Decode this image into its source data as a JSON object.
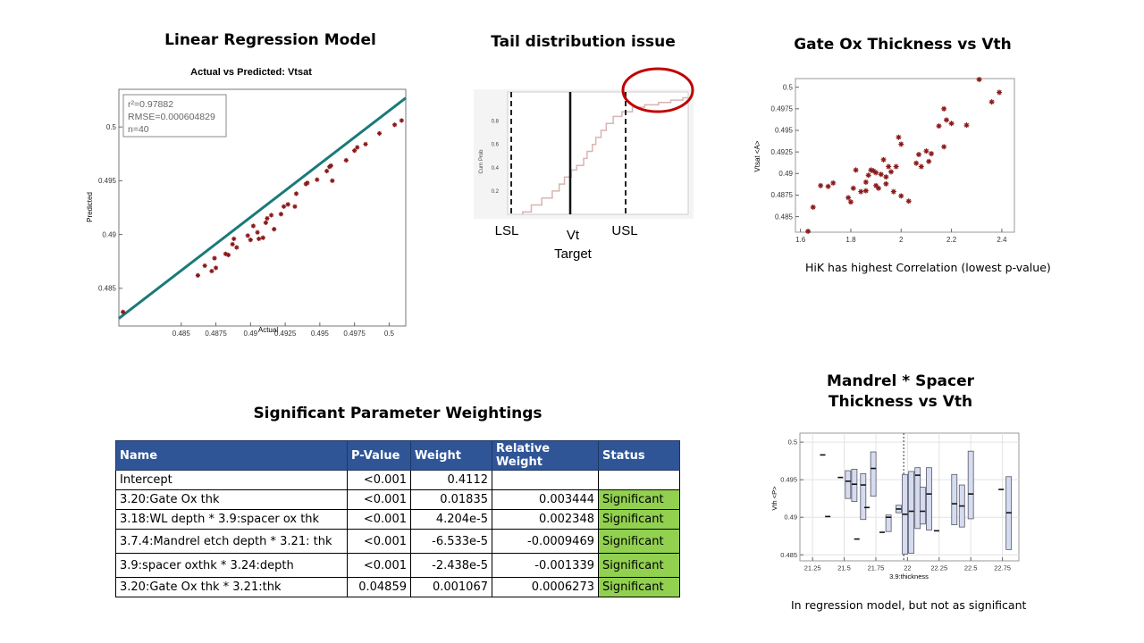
{
  "titles": {
    "regression": "Linear Regression Model",
    "tail": "Tail distribution issue",
    "gateox": "Gate Ox Thickness vs Vth",
    "mandrel_line1": "Mandrel * Spacer",
    "mandrel_line2": "Thickness vs Vth",
    "weights": "Significant Parameter Weightings"
  },
  "captions": {
    "gateox": "HiK has highest Correlation (lowest p-value)",
    "mandrel": "In regression model,  but not as significant"
  },
  "table": {
    "headers": [
      "Name",
      "P-Value",
      "Weight",
      "Relative Weight",
      "Status"
    ],
    "rows": [
      [
        "Intercept",
        "<0.001",
        "0.4112",
        "",
        ""
      ],
      [
        "3.20:Gate Ox thk",
        "<0.001",
        "0.01835",
        "0.003444",
        "Significant"
      ],
      [
        "3.18:WL depth * 3.9:spacer ox thk",
        "<0.001",
        "4.204e-5",
        "0.002348",
        "Significant"
      ],
      [
        "3.7.4:Mandrel etch depth * 3.21: thk",
        "<0.001",
        "-6.533e-5",
        "-0.0009469",
        "Significant"
      ],
      [
        "3.9:spacer oxthk * 3.24:depth",
        "<0.001",
        "-2.438e-5",
        "-0.001339",
        "Significant"
      ],
      [
        "3.20:Gate Ox thk * 3.21:thk",
        "0.04859",
        "0.001067",
        "0.0006273",
        "Significant"
      ]
    ]
  },
  "colors": {
    "marker": "#8b1a1a",
    "fit_line": "#1a7a7a",
    "highlight_circle": "#c00000",
    "table_header": "#2f5597",
    "significant": "#92d050",
    "box_fill": "#d6dcf0"
  },
  "chart_data": [
    {
      "id": "regression",
      "type": "scatter",
      "title": "Actual vs Predicted: Vtsat",
      "xlabel": "Actual",
      "ylabel": "Predicted",
      "xlim": [
        0.4805,
        0.5012
      ],
      "ylim": [
        0.4815,
        0.5035
      ],
      "xticks": [
        0.485,
        0.4875,
        0.49,
        0.4925,
        0.495,
        0.4975,
        0.5
      ],
      "xtick_labels": [
        "0.485",
        "0.4875",
        "0.49",
        "0.4925",
        "0.495",
        "0.4975",
        "0.5"
      ],
      "yticks": [
        0.485,
        0.49,
        0.495,
        0.5
      ],
      "ytick_labels": [
        "0.485",
        "0.49",
        "0.495",
        "0.5"
      ],
      "legend": [
        "r²=0.97882",
        "RMSE=0.000604829",
        "n=40"
      ],
      "legend_placement": "top-left",
      "fit": {
        "x": [
          0.4805,
          0.5012
        ],
        "y": [
          0.4822,
          0.5027
        ]
      },
      "points": [
        [
          0.4808,
          0.4828
        ],
        [
          0.4862,
          0.4862
        ],
        [
          0.4867,
          0.4871
        ],
        [
          0.4872,
          0.4866
        ],
        [
          0.4875,
          0.4869
        ],
        [
          0.4874,
          0.4878
        ],
        [
          0.4882,
          0.4882
        ],
        [
          0.4884,
          0.4881
        ],
        [
          0.4887,
          0.4891
        ],
        [
          0.4888,
          0.4896
        ],
        [
          0.489,
          0.4888
        ],
        [
          0.4898,
          0.4899
        ],
        [
          0.49,
          0.4895
        ],
        [
          0.4902,
          0.4908
        ],
        [
          0.4905,
          0.4902
        ],
        [
          0.4906,
          0.4896
        ],
        [
          0.4909,
          0.4897
        ],
        [
          0.4911,
          0.4911
        ],
        [
          0.4912,
          0.4915
        ],
        [
          0.4915,
          0.4918
        ],
        [
          0.4917,
          0.4905
        ],
        [
          0.4922,
          0.4919
        ],
        [
          0.4924,
          0.4926
        ],
        [
          0.4927,
          0.4928
        ],
        [
          0.4932,
          0.4926
        ],
        [
          0.4933,
          0.4938
        ],
        [
          0.494,
          0.4947
        ],
        [
          0.4941,
          0.4948
        ],
        [
          0.4948,
          0.4951
        ],
        [
          0.4955,
          0.4959
        ],
        [
          0.4957,
          0.4963
        ],
        [
          0.4958,
          0.4964
        ],
        [
          0.4959,
          0.495
        ],
        [
          0.4969,
          0.4969
        ],
        [
          0.4975,
          0.4978
        ],
        [
          0.4977,
          0.4981
        ],
        [
          0.4983,
          0.4984
        ],
        [
          0.4993,
          0.4994
        ],
        [
          0.5004,
          0.5002
        ],
        [
          0.5009,
          0.5006
        ]
      ]
    },
    {
      "id": "tail",
      "type": "line",
      "ylabel": "Cum Prob",
      "ylim": [
        0,
        1.05
      ],
      "yticks": [
        0.2,
        0.4,
        0.6,
        0.8
      ],
      "ytick_labels": [
        "0.2",
        "0.4",
        "0.6",
        "0.8"
      ],
      "spec_labels": {
        "lsl": "LSL",
        "vt": "Vt",
        "target": "Target",
        "usl": "USL"
      },
      "step_points": [
        [
          0.05,
          0.02
        ],
        [
          0.1,
          0.08
        ],
        [
          0.16,
          0.14
        ],
        [
          0.22,
          0.2
        ],
        [
          0.26,
          0.26
        ],
        [
          0.29,
          0.32
        ],
        [
          0.33,
          0.38
        ],
        [
          0.36,
          0.42
        ],
        [
          0.4,
          0.48
        ],
        [
          0.42,
          0.54
        ],
        [
          0.45,
          0.6
        ],
        [
          0.47,
          0.66
        ],
        [
          0.5,
          0.72
        ],
        [
          0.53,
          0.78
        ],
        [
          0.57,
          0.84
        ],
        [
          0.62,
          0.88
        ],
        [
          0.68,
          0.92
        ],
        [
          0.75,
          0.94
        ],
        [
          0.83,
          0.96
        ],
        [
          0.9,
          0.98
        ],
        [
          0.97,
          1.0
        ]
      ]
    },
    {
      "id": "gateox",
      "type": "scatter",
      "xlabel": "",
      "ylabel": "Vtsat <A>",
      "xlim": [
        1.58,
        2.45
      ],
      "ylim": [
        0.4832,
        0.501
      ],
      "xticks": [
        1.6,
        1.8,
        2,
        2.2,
        2.4
      ],
      "xtick_labels": [
        "1.6",
        "1.8",
        "2",
        "2.2",
        "2.4"
      ],
      "yticks": [
        0.485,
        0.4875,
        0.49,
        0.4925,
        0.495,
        0.4975,
        0.5
      ],
      "ytick_labels": [
        "0.485",
        "0.4875",
        "0.49",
        "0.4925",
        "0.495",
        "0.4975",
        "0.5"
      ],
      "points": [
        [
          1.63,
          0.4833
        ],
        [
          1.65,
          0.4861
        ],
        [
          1.68,
          0.4886
        ],
        [
          1.71,
          0.4885
        ],
        [
          1.73,
          0.4889
        ],
        [
          1.79,
          0.4872
        ],
        [
          1.8,
          0.4867
        ],
        [
          1.81,
          0.4883
        ],
        [
          1.82,
          0.4904
        ],
        [
          1.84,
          0.4879
        ],
        [
          1.86,
          0.488
        ],
        [
          1.86,
          0.489
        ],
        [
          1.87,
          0.4898
        ],
        [
          1.88,
          0.4904
        ],
        [
          1.89,
          0.4903
        ],
        [
          1.9,
          0.4886
        ],
        [
          1.9,
          0.4901
        ],
        [
          1.91,
          0.4883
        ],
        [
          1.92,
          0.4899
        ],
        [
          1.93,
          0.4916
        ],
        [
          1.94,
          0.4896
        ],
        [
          1.94,
          0.4888
        ],
        [
          1.95,
          0.4908
        ],
        [
          1.96,
          0.4902
        ],
        [
          1.97,
          0.4879
        ],
        [
          1.98,
          0.4908
        ],
        [
          1.99,
          0.4942
        ],
        [
          2.0,
          0.4934
        ],
        [
          2.0,
          0.4874
        ],
        [
          2.03,
          0.4868
        ],
        [
          2.06,
          0.4912
        ],
        [
          2.07,
          0.4922
        ],
        [
          2.08,
          0.4908
        ],
        [
          2.1,
          0.4926
        ],
        [
          2.11,
          0.4914
        ],
        [
          2.12,
          0.4923
        ],
        [
          2.15,
          0.4955
        ],
        [
          2.17,
          0.4931
        ],
        [
          2.18,
          0.4962
        ],
        [
          2.2,
          0.4958
        ],
        [
          2.17,
          0.4975
        ],
        [
          2.26,
          0.4956
        ],
        [
          2.31,
          0.5009
        ],
        [
          2.36,
          0.4983
        ],
        [
          2.39,
          0.4994
        ]
      ]
    },
    {
      "id": "mandrel",
      "type": "box",
      "xlabel": "3.9:thickness",
      "ylabel": "Vth <P>",
      "xlim": [
        21.15,
        22.88
      ],
      "ylim": [
        0.4842,
        0.5012
      ],
      "xticks": [
        21.25,
        21.5,
        21.75,
        22,
        22.25,
        22.5,
        22.75
      ],
      "xtick_labels": [
        "21.25",
        "21.5",
        "21.75",
        "22",
        "22.25",
        "22.5",
        "22.75"
      ],
      "yticks": [
        0.485,
        0.49,
        0.495,
        0.5
      ],
      "ytick_labels": [
        "0.485",
        "0.49",
        "0.495",
        "0.5"
      ],
      "reference_x": 21.97,
      "boxes": [
        {
          "x": 21.33,
          "low": 0.4983,
          "high": 0.4983,
          "med": 0.4983
        },
        {
          "x": 21.37,
          "low": 0.4901,
          "high": 0.4901,
          "med": 0.4901
        },
        {
          "x": 21.47,
          "low": 0.4953,
          "high": 0.4953,
          "med": 0.4953
        },
        {
          "x": 21.53,
          "low": 0.4925,
          "high": 0.4962,
          "med": 0.4948
        },
        {
          "x": 21.58,
          "low": 0.4921,
          "high": 0.4964,
          "med": 0.4944
        },
        {
          "x": 21.6,
          "low": 0.4871,
          "high": 0.4871,
          "med": 0.4871
        },
        {
          "x": 21.65,
          "low": 0.4897,
          "high": 0.4958,
          "med": 0.4943
        },
        {
          "x": 21.68,
          "low": 0.4913,
          "high": 0.4913,
          "med": 0.4913
        },
        {
          "x": 21.73,
          "low": 0.4928,
          "high": 0.4987,
          "med": 0.4965
        },
        {
          "x": 21.8,
          "low": 0.488,
          "high": 0.488,
          "med": 0.488
        },
        {
          "x": 21.85,
          "low": 0.4881,
          "high": 0.4903,
          "med": 0.49
        },
        {
          "x": 21.93,
          "low": 0.4906,
          "high": 0.4916,
          "med": 0.4911
        },
        {
          "x": 21.98,
          "low": 0.4851,
          "high": 0.4957,
          "med": 0.4904
        },
        {
          "x": 22.03,
          "low": 0.4852,
          "high": 0.4961,
          "med": 0.4908
        },
        {
          "x": 22.08,
          "low": 0.4885,
          "high": 0.4966,
          "med": 0.4956
        },
        {
          "x": 22.12,
          "low": 0.4891,
          "high": 0.494,
          "med": 0.4908
        },
        {
          "x": 22.17,
          "low": 0.4883,
          "high": 0.4966,
          "med": 0.4931
        },
        {
          "x": 22.23,
          "low": 0.4882,
          "high": 0.4882,
          "med": 0.4882
        },
        {
          "x": 22.37,
          "low": 0.489,
          "high": 0.4957,
          "med": 0.4918
        },
        {
          "x": 22.43,
          "low": 0.4887,
          "high": 0.4943,
          "med": 0.4915
        },
        {
          "x": 22.5,
          "low": 0.4898,
          "high": 0.4988,
          "med": 0.4931
        },
        {
          "x": 22.74,
          "low": 0.4937,
          "high": 0.4937,
          "med": 0.4937
        },
        {
          "x": 22.8,
          "low": 0.4857,
          "high": 0.4954,
          "med": 0.4906
        }
      ]
    }
  ]
}
